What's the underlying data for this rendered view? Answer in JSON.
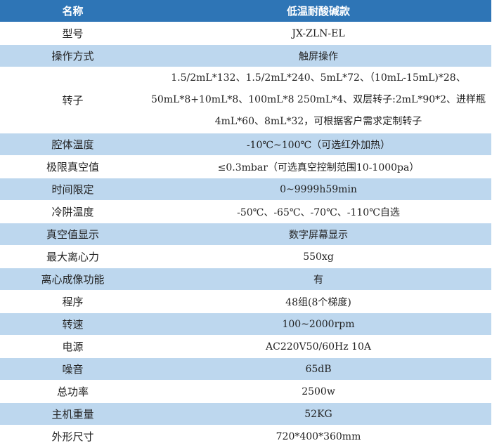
{
  "header": {
    "name": "名称",
    "model": "低温耐酸碱款"
  },
  "rows": [
    {
      "k": "型号",
      "v": "JX-ZLN-EL"
    },
    {
      "k": "操作方式",
      "v": "触屏操作"
    },
    {
      "k": "转子",
      "v": [
        "1.5/2mL*132、1.5/2mL*240、5mL*72、（10mL-15mL)*28、",
        "50mL*8+10mL*8、100mL*8 250mL*4、双层转子:2mL*90*2、进样瓶",
        "4mL*60、8mL*32，可根据客户需求定制转子"
      ]
    },
    {
      "k": "腔体温度",
      "v": "-10℃~100℃（可选红外加热）"
    },
    {
      "k": "极限真空值",
      "v": "≤0.3mbar（可选真空控制范围10-1000pa）"
    },
    {
      "k": "时间限定",
      "v": "0~9999h59min"
    },
    {
      "k": "冷阱温度",
      "v": "-50℃、-65℃、-70℃、-110℃自选"
    },
    {
      "k": "真空值显示",
      "v": "数字屏幕显示"
    },
    {
      "k": "最大离心力",
      "v": "550xg"
    },
    {
      "k": "离心成像功能",
      "v": "有"
    },
    {
      "k": "程序",
      "v": "48组(8个梯度)"
    },
    {
      "k": "转速",
      "v": "100~2000rpm"
    },
    {
      "k": "电源",
      "v": "AC220V50/60Hz 10A"
    },
    {
      "k": "噪音",
      "v": "65dB"
    },
    {
      "k": "总功率",
      "v": "2500w"
    },
    {
      "k": "主机重量",
      "v": "52KG"
    },
    {
      "k": "外形尺寸",
      "v": "720*400*360mm"
    }
  ],
  "colors": {
    "header": "#2e75b6",
    "alt_row": "#bdd7ee"
  }
}
